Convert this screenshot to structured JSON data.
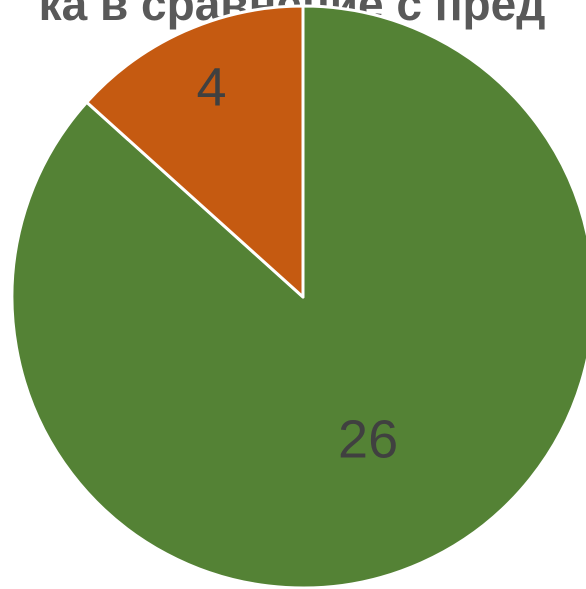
{
  "chart_data": {
    "type": "pie",
    "title": "ка в сравнение с пред",
    "categories": [
      null,
      null
    ],
    "values": [
      26,
      4
    ],
    "colors": [
      "#548235",
      "#c55a11"
    ]
  }
}
